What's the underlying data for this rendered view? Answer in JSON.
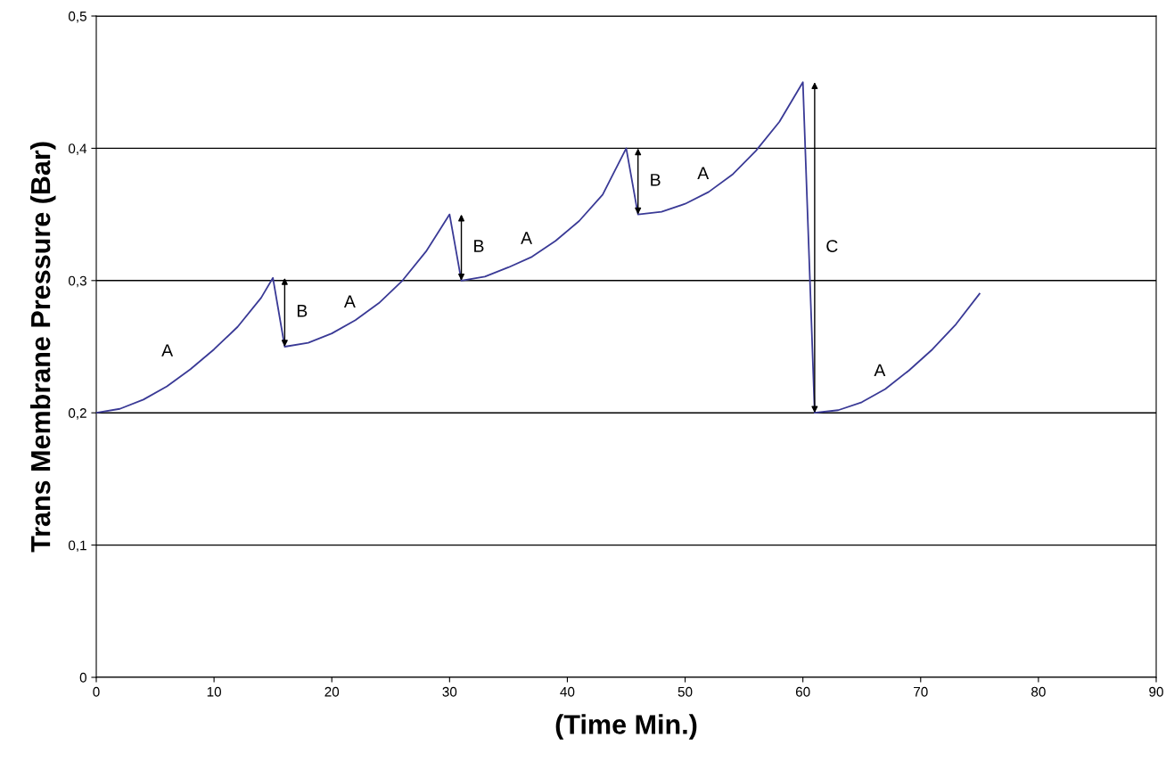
{
  "chart_data": {
    "type": "line",
    "xlabel": "(Time Min.)",
    "ylabel": "Trans Membrane Pressure (Bar)",
    "series": [
      {
        "color": "#3a3a96",
        "x": [
          0,
          2,
          4,
          6,
          8,
          10,
          12,
          14,
          15,
          16,
          18,
          20,
          22,
          24,
          26,
          28,
          30,
          31,
          33,
          35,
          37,
          39,
          41,
          43,
          45,
          46,
          48,
          50,
          52,
          54,
          56,
          58,
          60,
          61,
          63,
          65,
          67,
          69,
          71,
          73,
          75
        ],
        "values": [
          0.2,
          0.203,
          0.21,
          0.22,
          0.233,
          0.248,
          0.265,
          0.287,
          0.302,
          0.25,
          0.253,
          0.26,
          0.27,
          0.283,
          0.3,
          0.322,
          0.35,
          0.3,
          0.303,
          0.31,
          0.318,
          0.33,
          0.345,
          0.365,
          0.4,
          0.35,
          0.352,
          0.358,
          0.367,
          0.38,
          0.398,
          0.42,
          0.45,
          0.2,
          0.202,
          0.208,
          0.218,
          0.232,
          0.248,
          0.267,
          0.29
        ]
      }
    ],
    "xlim": [
      0,
      90
    ],
    "xticks": [
      0,
      10,
      20,
      30,
      40,
      50,
      60,
      70,
      80,
      90
    ],
    "ylim": [
      0,
      0.5
    ],
    "yticks": [
      {
        "value": 0,
        "label": "0"
      },
      {
        "value": 0.1,
        "label": "0,1"
      },
      {
        "value": 0.2,
        "label": "0,2"
      },
      {
        "value": 0.3,
        "label": "0,3"
      },
      {
        "value": 0.4,
        "label": "0,4"
      },
      {
        "value": 0.5,
        "label": "0,5"
      }
    ],
    "grid": "y",
    "marker": "none",
    "line_style": "solid",
    "annotations": [
      "A",
      "B",
      "A",
      "B",
      "A",
      "B",
      "A",
      "C",
      "A"
    ]
  }
}
